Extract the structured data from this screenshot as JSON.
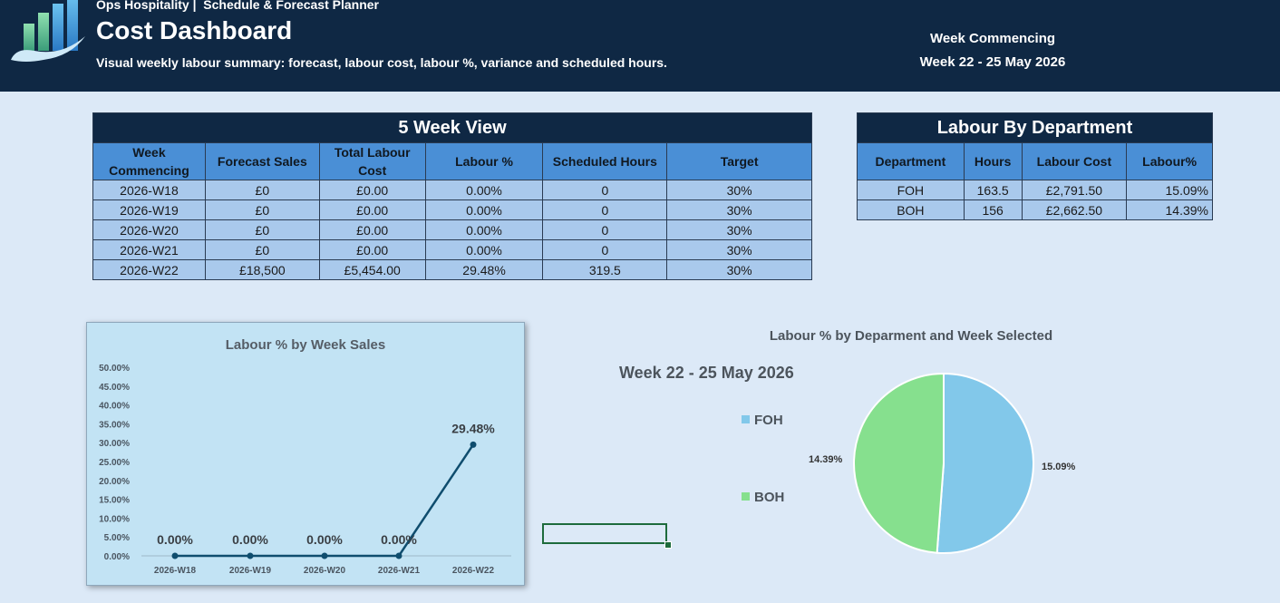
{
  "header": {
    "brand": "Ops Hospitality |  Schedule & Forecast Planner",
    "title": "Cost Dashboard",
    "subtitle": "Visual weekly labour summary: forecast, labour cost, labour %, variance and scheduled hours.",
    "week_label": "Week Commencing",
    "week_value": "Week 22 - 25 May 2026"
  },
  "five_week": {
    "title": "5 Week View",
    "columns": [
      "Week Commencing",
      "Forecast Sales",
      "Total Labour Cost",
      "Labour %",
      "Scheduled Hours",
      "Target"
    ],
    "rows": [
      [
        "2026-W18",
        "£0",
        "£0.00",
        "0.00%",
        "0",
        "30%"
      ],
      [
        "2026-W19",
        "£0",
        "£0.00",
        "0.00%",
        "0",
        "30%"
      ],
      [
        "2026-W20",
        "£0",
        "£0.00",
        "0.00%",
        "0",
        "30%"
      ],
      [
        "2026-W21",
        "£0",
        "£0.00",
        "0.00%",
        "0",
        "30%"
      ],
      [
        "2026-W22",
        "£18,500",
        "£5,454.00",
        "29.48%",
        "319.5",
        "30%"
      ]
    ]
  },
  "by_department": {
    "title": "Labour By Department",
    "columns": [
      "Department",
      "Hours",
      "Labour Cost",
      "Labour%"
    ],
    "rows": [
      [
        "FOH",
        "163.5",
        "£2,791.50",
        "15.09%"
      ],
      [
        "BOH",
        "156",
        "£2,662.50",
        "14.39%"
      ]
    ]
  },
  "chart_data": [
    {
      "type": "line",
      "title": "Labour % by Week Sales",
      "categories": [
        "2026-W18",
        "2026-W19",
        "2026-W20",
        "2026-W21",
        "2026-W22"
      ],
      "values": [
        0.0,
        0.0,
        0.0,
        0.0,
        29.48
      ],
      "data_labels": [
        "0.00%",
        "0.00%",
        "0.00%",
        "0.00%",
        "29.48%"
      ],
      "y_ticks": [
        "0.00%",
        "5.00%",
        "10.00%",
        "15.00%",
        "20.00%",
        "25.00%",
        "30.00%",
        "35.00%",
        "40.00%",
        "45.00%",
        "50.00%"
      ],
      "ylim": [
        0,
        50
      ],
      "grid": false,
      "color": "#0f4d6e"
    },
    {
      "type": "pie",
      "title": "Labour % by Deparment and Week Selected",
      "subtitle": "Week 22 - 25 May 2026",
      "labels": [
        "FOH",
        "BOH"
      ],
      "values": [
        15.09,
        14.39
      ],
      "data_labels": [
        "15.09%",
        "14.39%"
      ],
      "colors": [
        "#82c8ea",
        "#86e08e"
      ],
      "legend": "left"
    }
  ]
}
